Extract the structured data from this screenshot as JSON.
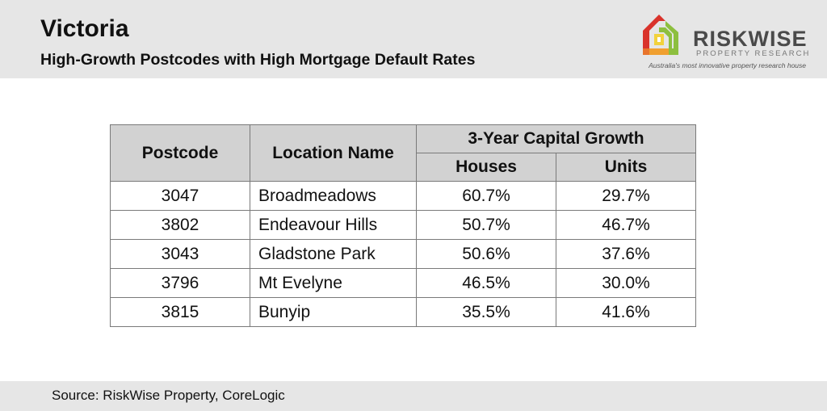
{
  "header": {
    "title": "Victoria",
    "subtitle": "High-Growth Postcodes with High Mortgage Default Rates"
  },
  "logo": {
    "brand": "RISKWISE",
    "brand_sub": "PROPERTY RESEARCH",
    "tagline": "Australia's most innovative property research house",
    "icon": "house-logo-icon",
    "colors": [
      "#d9332b",
      "#f0a030",
      "#8dbf3f",
      "#f2d23c"
    ]
  },
  "table": {
    "headers": {
      "postcode": "Postcode",
      "location": "Location Name",
      "growth": "3-Year Capital Growth",
      "houses": "Houses",
      "units": "Units"
    },
    "rows": [
      {
        "postcode": "3047",
        "location": "Broadmeadows",
        "houses": "60.7%",
        "units": "29.7%"
      },
      {
        "postcode": "3802",
        "location": "Endeavour Hills",
        "houses": "50.7%",
        "units": "46.7%"
      },
      {
        "postcode": "3043",
        "location": "Gladstone Park",
        "houses": "50.6%",
        "units": "37.6%"
      },
      {
        "postcode": "3796",
        "location": "Mt Evelyne",
        "houses": "46.5%",
        "units": "30.0%"
      },
      {
        "postcode": "3815",
        "location": "Bunyip",
        "houses": "35.5%",
        "units": "41.6%"
      }
    ]
  },
  "footer": {
    "source": "Source: RiskWise Property, CoreLogic"
  }
}
